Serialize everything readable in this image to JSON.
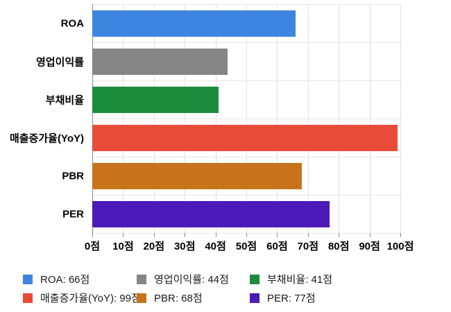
{
  "chart_data": {
    "type": "bar",
    "orientation": "horizontal",
    "title": "",
    "unit": "점",
    "categories": [
      "ROA",
      "영업이익률",
      "부채비율",
      "매출증가율(YoY)",
      "PBR",
      "PER"
    ],
    "values": [
      66,
      44,
      41,
      99,
      68,
      77
    ],
    "bar_colors": [
      "#3C86E0",
      "#868686",
      "#1C8C3C",
      "#E84C38",
      "#C8731C",
      "#4B1AB9"
    ],
    "xlim": [
      0,
      100
    ],
    "x_tick_labels": [
      "0점",
      "10점",
      "20점",
      "30점",
      "40점",
      "50점",
      "60점",
      "70점",
      "80점",
      "90점",
      "100점"
    ],
    "grid": true,
    "legend_position": "bottom",
    "legend_items": [
      {
        "label": "ROA: 66점",
        "color": "#3C86E0"
      },
      {
        "label": "영업이익률: 44점",
        "color": "#868686"
      },
      {
        "label": "부채비율: 41점",
        "color": "#1C8C3C"
      },
      {
        "label": "매출증가율(YoY): 99점",
        "color": "#E84C38"
      },
      {
        "label": "PBR: 68점",
        "color": "#C8731C"
      },
      {
        "label": "PER: 77점",
        "color": "#4B1AB9"
      }
    ],
    "style_colors": {
      "background": "#ffffff",
      "gridline": "#e2e2e2",
      "axis_line": "#8a8a8a",
      "label_text": "#000000",
      "legend_text": "#1a1a1a"
    }
  }
}
